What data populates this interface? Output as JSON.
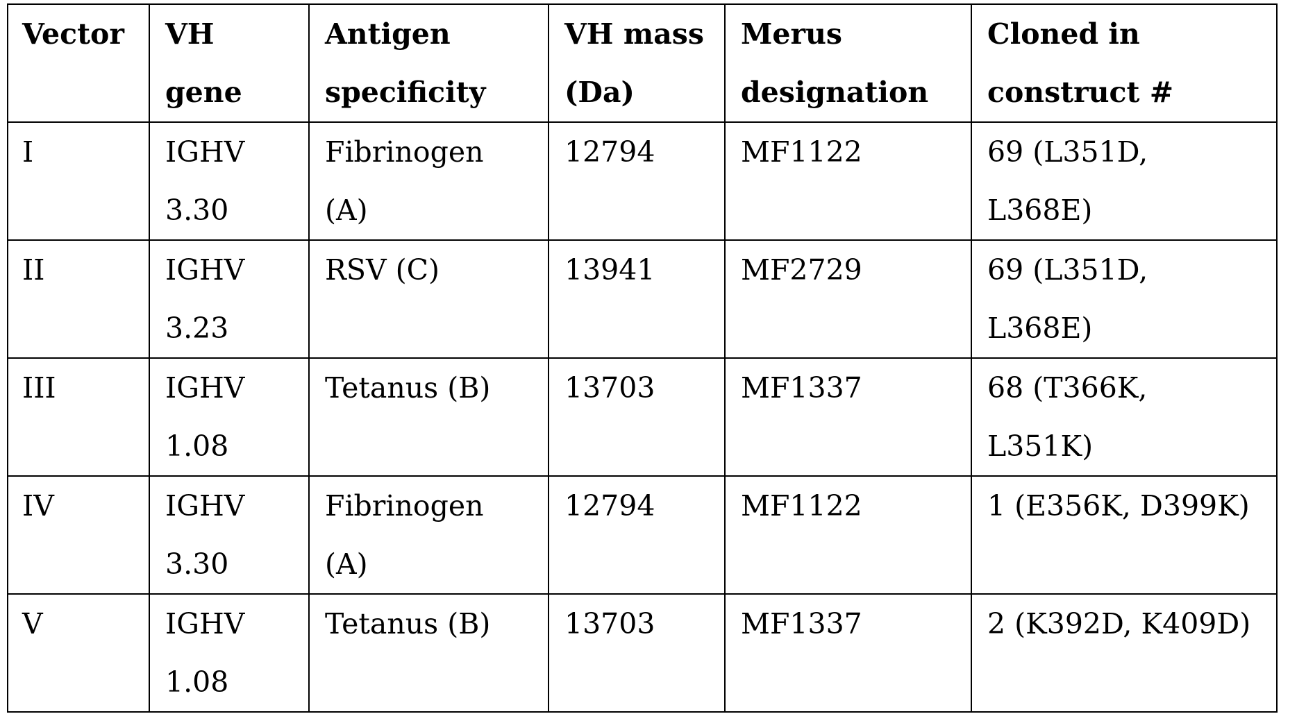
{
  "table": {
    "headers": [
      "Vector",
      "VH\ngene",
      "Antigen\nspecificity",
      "VH mass\n(Da)",
      "Merus\ndesignation",
      "Cloned in\nconstruct #"
    ],
    "rows": [
      [
        "I",
        "IGHV\n3.30",
        "Fibrinogen\n(A)",
        "12794",
        "MF1122",
        "69 (L351D, L368E)"
      ],
      [
        "II",
        "IGHV\n3.23",
        "RSV (C)",
        "13941",
        "MF2729",
        "69 (L351D, L368E)"
      ],
      [
        "III",
        "IGHV\n1.08",
        "Tetanus (B)",
        "13703",
        "MF1337",
        "68 (T366K, L351K)"
      ],
      [
        "IV",
        "IGHV\n3.30",
        "Fibrinogen\n(A)",
        "12794",
        "MF1122",
        "1 (E356K, D399K)"
      ],
      [
        "V",
        "IGHV\n1.08",
        "Tetanus (B)",
        "13703",
        "MF1337",
        "2 (K392D, K409D)"
      ]
    ]
  }
}
